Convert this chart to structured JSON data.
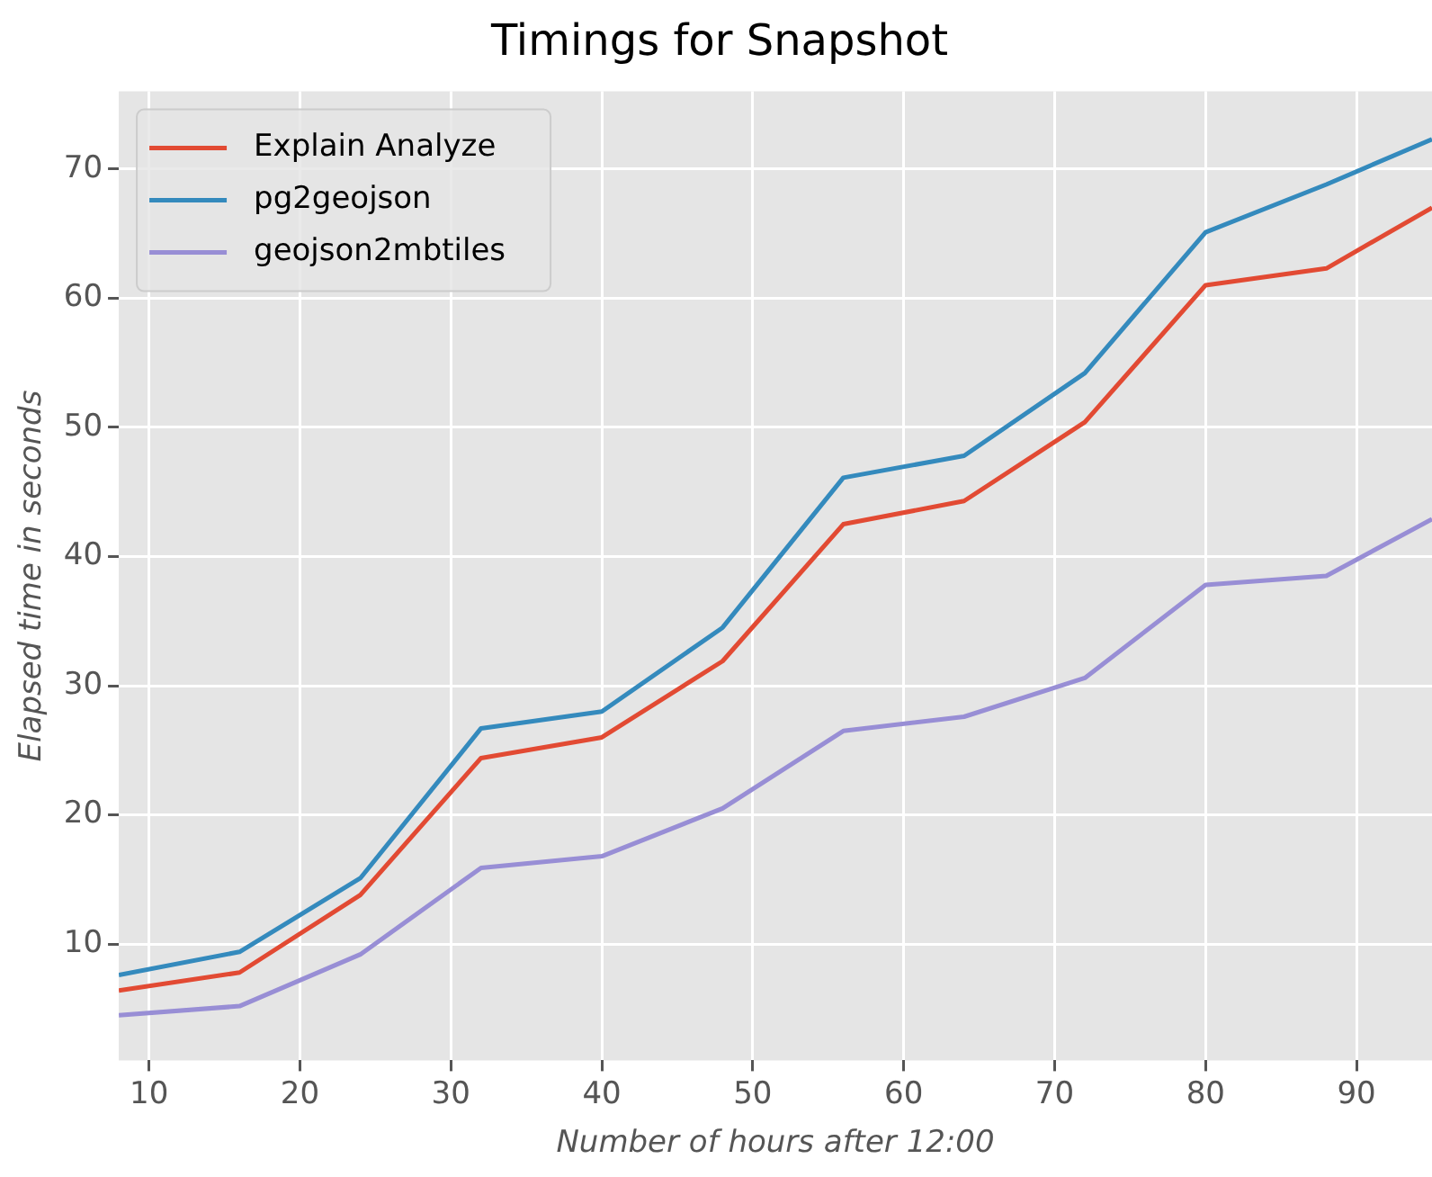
{
  "chart_data": {
    "type": "line",
    "title": "Timings for Snapshot",
    "xlabel": "Number of hours after 12:00",
    "ylabel": "Elapsed time in seconds",
    "x": [
      8,
      16,
      24,
      32,
      40,
      48,
      56,
      64,
      72,
      80,
      88,
      95
    ],
    "series": [
      {
        "name": "Explain Analyze",
        "color": "#e24a33",
        "values": [
          6.4,
          7.8,
          13.8,
          24.4,
          26,
          31.9,
          42.5,
          44.3,
          50.4,
          61,
          62.3,
          67
        ]
      },
      {
        "name": "pg2geojson",
        "color": "#348abd",
        "values": [
          7.6,
          9.4,
          15.1,
          26.7,
          28,
          34.5,
          46.1,
          47.8,
          54.2,
          65.1,
          68.8,
          72.3
        ]
      },
      {
        "name": "geojson2mbtiles",
        "color": "#988ed5",
        "values": [
          4.5,
          5.2,
          9.2,
          15.9,
          16.8,
          20.5,
          26.5,
          27.6,
          30.6,
          37.8,
          38.5,
          42.9
        ]
      }
    ],
    "xlim": [
      8,
      95
    ],
    "ylim": [
      1,
      76
    ],
    "xticks": [
      10,
      20,
      30,
      40,
      50,
      60,
      70,
      80,
      90
    ],
    "yticks": [
      10,
      20,
      30,
      40,
      50,
      60,
      70
    ],
    "grid": true,
    "legend": "top left",
    "marker": "none",
    "line_style": "solid"
  }
}
